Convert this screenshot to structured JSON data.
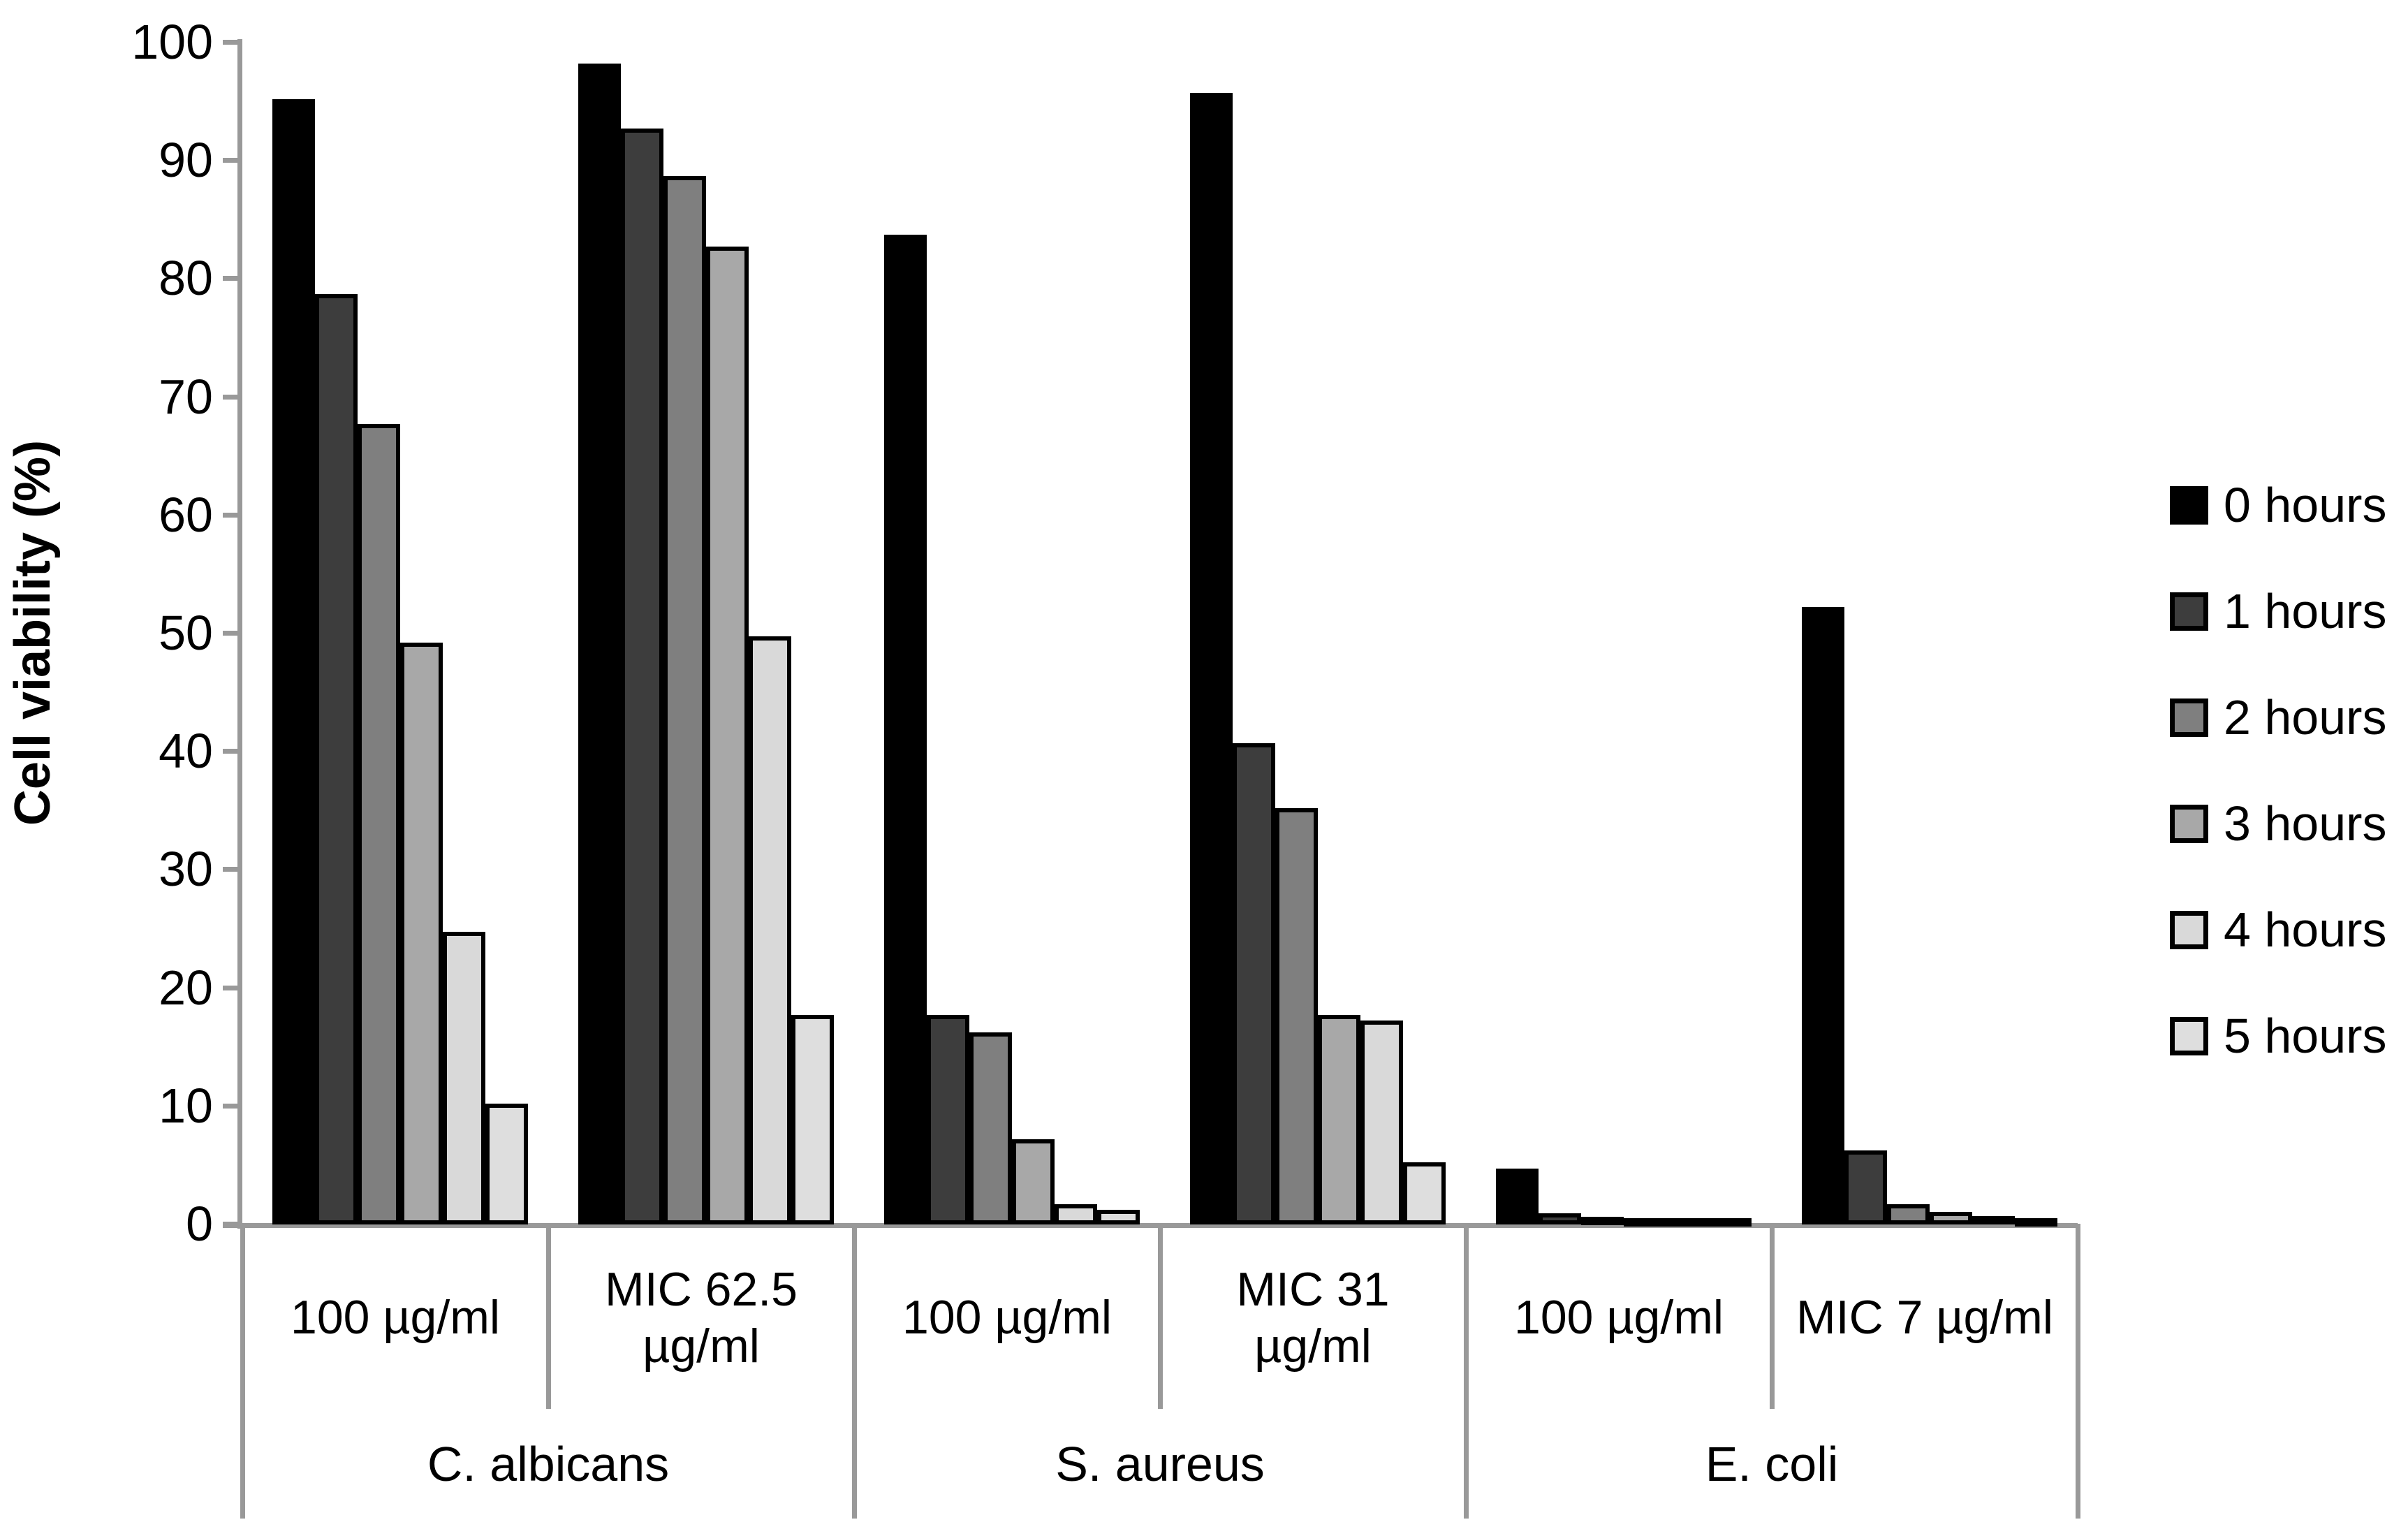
{
  "chart_data": {
    "type": "bar",
    "title": "",
    "xlabel": "",
    "ylabel": "Cell viability (%)",
    "ylim": [
      0,
      100
    ],
    "yticks": [
      0,
      10,
      20,
      30,
      40,
      50,
      60,
      70,
      80,
      90,
      100
    ],
    "grid": false,
    "legend_position": "right",
    "series_names": [
      "0 hours",
      "1 hours",
      "2 hours",
      "3 hours",
      "4 hours",
      "5 hours"
    ],
    "series_colors": [
      "#000000",
      "#3d3d3d",
      "#7f7f7f",
      "#a8a8a8",
      "#d9d9d9",
      "#dedede"
    ],
    "axis_color": "#999999",
    "bar_border_color": "#000000",
    "organisms": [
      "C. albicans",
      "S. aureus",
      "E. coli"
    ],
    "groups": [
      {
        "organism": "C. albicans",
        "concentration": "100 µg/ml",
        "values": [
          95,
          78.5,
          67.5,
          49,
          24.5,
          10
        ]
      },
      {
        "organism": "C. albicans",
        "concentration": "MIC 62.5 µg/ml",
        "values": [
          98,
          92.5,
          88.5,
          82.5,
          49.5,
          17.5
        ]
      },
      {
        "organism": "S. aureus",
        "concentration": "100 µg/ml",
        "values": [
          83.5,
          17.5,
          16,
          7,
          1.5,
          1
        ]
      },
      {
        "organism": "S. aureus",
        "concentration": "MIC 31 µg/ml",
        "values": [
          95.5,
          40.5,
          35,
          17.5,
          17,
          5
        ]
      },
      {
        "organism": "E. coli",
        "concentration": "100 µg/ml",
        "values": [
          4.5,
          0.7,
          0.4,
          0.25,
          0.2,
          0.15
        ]
      },
      {
        "organism": "E. coli",
        "concentration": "MIC 7 µg/ml",
        "values": [
          52,
          6,
          1.5,
          0.8,
          0.5,
          0.3
        ]
      }
    ]
  }
}
